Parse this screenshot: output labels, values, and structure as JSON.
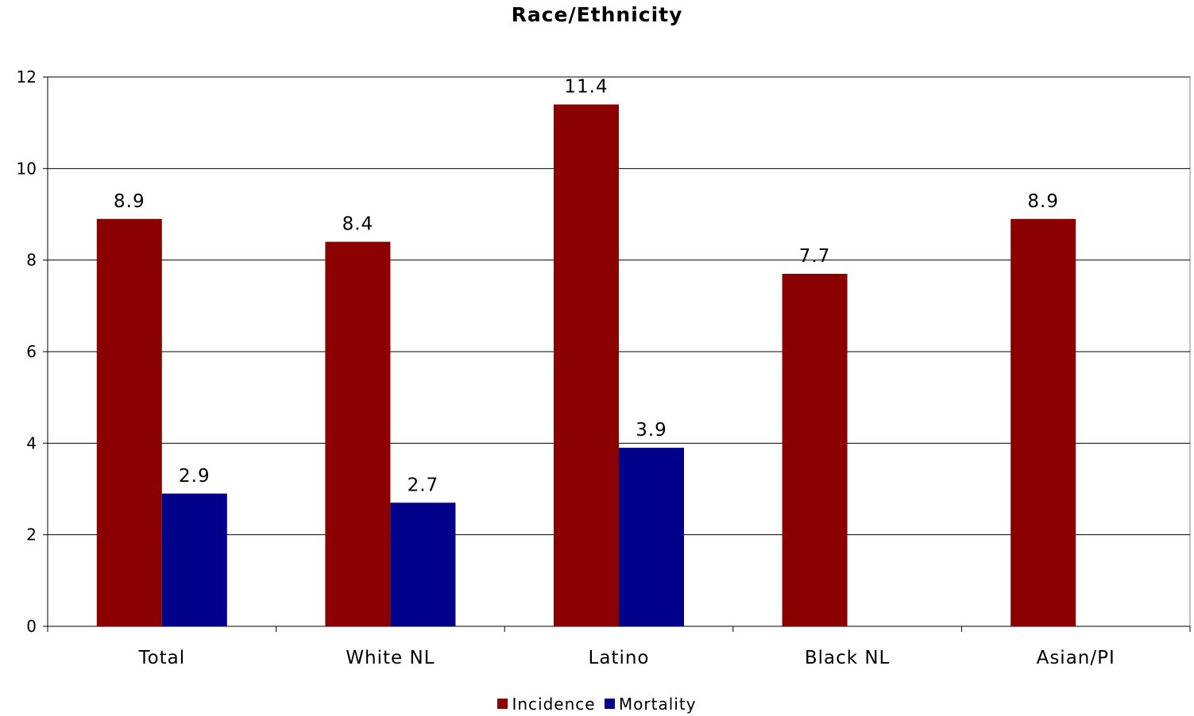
{
  "chart_data": {
    "type": "bar",
    "title": "Race/Ethnicity",
    "xlabel": "",
    "ylabel": "",
    "categories": [
      "Total",
      "White NL",
      "Latino",
      "Black NL",
      "Asian/PI"
    ],
    "series": [
      {
        "name": "Incidence",
        "color": "#8B0000",
        "values": [
          8.9,
          8.4,
          11.4,
          7.7,
          8.9
        ]
      },
      {
        "name": "Mortality",
        "color": "#00008B",
        "values": [
          2.9,
          2.7,
          3.9,
          null,
          null
        ]
      }
    ],
    "ylim": [
      0,
      12
    ],
    "yticks": [
      "0",
      "2",
      "4",
      "6",
      "8",
      "10",
      "12"
    ],
    "grid": true,
    "legend_position": "bottom"
  }
}
